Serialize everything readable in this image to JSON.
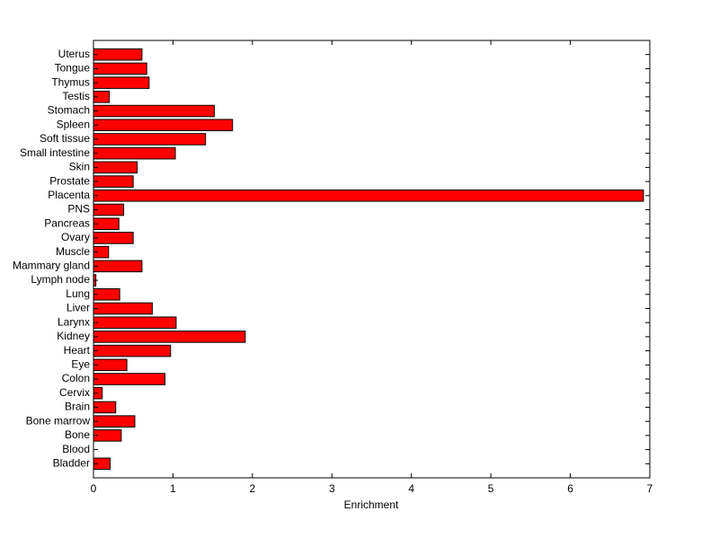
{
  "chart_data": {
    "type": "barh",
    "xlabel": "Enrichment",
    "categories": [
      "Bladder",
      "Blood",
      "Bone",
      "Bone marrow",
      "Brain",
      "Cervix",
      "Colon",
      "Eye",
      "Heart",
      "Kidney",
      "Larynx",
      "Liver",
      "Lung",
      "Lymph node",
      "Mammary gland",
      "Muscle",
      "Ovary",
      "Pancreas",
      "PNS",
      "Placenta",
      "Prostate",
      "Skin",
      "Small intestine",
      "Soft tissue",
      "Spleen",
      "Stomach",
      "Testis",
      "Thymus",
      "Tongue",
      "Uterus"
    ],
    "values": [
      0.21,
      0.0,
      0.35,
      0.52,
      0.28,
      0.11,
      0.9,
      0.42,
      0.97,
      1.91,
      1.04,
      0.74,
      0.33,
      0.03,
      0.61,
      0.19,
      0.5,
      0.32,
      0.38,
      6.92,
      0.5,
      0.55,
      1.03,
      1.41,
      1.75,
      1.52,
      0.2,
      0.7,
      0.67,
      0.61
    ],
    "color": "#ff0000",
    "xlim": [
      0,
      7
    ],
    "xticks": [
      0,
      1,
      2,
      3,
      4,
      5,
      6,
      7
    ]
  }
}
